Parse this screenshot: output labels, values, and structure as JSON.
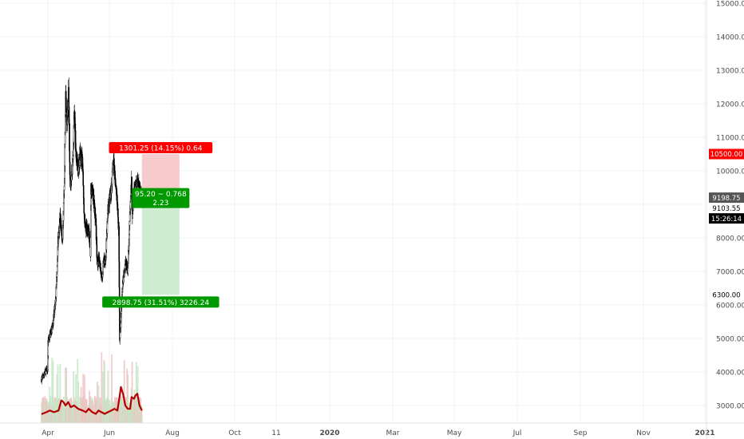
{
  "chart_data": {
    "type": "candlestick",
    "price_axis": {
      "ticks": [
        3000,
        4000,
        5000,
        6000,
        7000,
        8000,
        9000,
        10000,
        11000,
        12000,
        13000,
        14000,
        15000
      ],
      "tick_labels": [
        "3000.00",
        "4000.00",
        "5000.00",
        "6000.00",
        "7000.00",
        "8000.00",
        "9000.00",
        "10000.00",
        "11000.00",
        "12000.00",
        "13000.00",
        "14000.00",
        "15000.00"
      ]
    },
    "time_axis": {
      "labels": [
        "Apr",
        "Jun",
        "Aug",
        "Oct",
        "11",
        "2020",
        "Mar",
        "May",
        "Jul",
        "Sep",
        "Nov",
        "2021"
      ],
      "bold": [
        "2020",
        "2021"
      ]
    },
    "price_markers": [
      {
        "id": "target",
        "label": "10500.00",
        "value": 10500,
        "color": "#ff0000",
        "text_color": "#ffffff"
      },
      {
        "id": "entry",
        "label": "9198.75",
        "value": 9198.75,
        "color": "#555555",
        "text_color": "#ffffff"
      },
      {
        "id": "last",
        "label": "9103.55",
        "value": 9103.55,
        "color": "#ffffff",
        "text_color": "#000000"
      },
      {
        "id": "countdown",
        "label": "15:26:14",
        "value": 8700,
        "color": "#000000",
        "text_color": "#ffffff"
      },
      {
        "id": "stop",
        "label": "6300.00",
        "value": 6300,
        "color": "#ffffff",
        "text_color": "#000000"
      }
    ],
    "position_tool": {
      "entry": 9198.75,
      "target": 10500,
      "stop": 6300,
      "start_date": "2020-06-27",
      "end_date": "2020-12-25",
      "profit_color": "#f6c5c5",
      "loss_color": "#c9ebcb",
      "labels": {
        "target": "1301.25 (14.15%) 0.64",
        "stop": "2898.75 (31.51%) 3226.24",
        "center_line1": "95.20 ~ 0.768",
        "center_line2": "2.23"
      },
      "label_colors": {
        "target": "#ff0000",
        "center": "#009900",
        "stop": "#009900"
      }
    },
    "price_keypoints": [
      [
        "2019-03-01",
        3780
      ],
      [
        "2019-03-20",
        4000
      ],
      [
        "2019-03-31",
        4100
      ],
      [
        "2019-04-02",
        4900
      ],
      [
        "2019-04-25",
        5400
      ],
      [
        "2019-05-10",
        6300
      ],
      [
        "2019-05-20",
        7900
      ],
      [
        "2019-05-30",
        8600
      ],
      [
        "2019-06-10",
        7900
      ],
      [
        "2019-06-15",
        8800
      ],
      [
        "2019-06-20",
        9600
      ],
      [
        "2019-06-26",
        12600
      ],
      [
        "2019-06-30",
        11300
      ],
      [
        "2019-07-05",
        11800
      ],
      [
        "2019-07-10",
        12300
      ],
      [
        "2019-07-17",
        9700
      ],
      [
        "2019-07-25",
        9800
      ],
      [
        "2019-08-01",
        10500
      ],
      [
        "2019-08-06",
        11900
      ],
      [
        "2019-08-15",
        10300
      ],
      [
        "2019-08-25",
        10100
      ],
      [
        "2019-09-05",
        10500
      ],
      [
        "2019-09-15",
        10300
      ],
      [
        "2019-09-24",
        8500
      ],
      [
        "2019-10-05",
        8200
      ],
      [
        "2019-10-15",
        8300
      ],
      [
        "2019-10-23",
        7500
      ],
      [
        "2019-10-26",
        9500
      ],
      [
        "2019-11-05",
        9300
      ],
      [
        "2019-11-18",
        8500
      ],
      [
        "2019-11-25",
        7100
      ],
      [
        "2019-12-05",
        7400
      ],
      [
        "2019-12-17",
        6700
      ],
      [
        "2019-12-25",
        7300
      ],
      [
        "2020-01-05",
        7400
      ],
      [
        "2020-01-15",
        8800
      ],
      [
        "2020-01-30",
        9400
      ],
      [
        "2020-02-12",
        10300
      ],
      [
        "2020-02-25",
        9400
      ],
      [
        "2020-03-08",
        8200
      ],
      [
        "2020-03-12",
        5000
      ],
      [
        "2020-03-16",
        5200
      ],
      [
        "2020-03-25",
        6600
      ],
      [
        "2020-04-08",
        7300
      ],
      [
        "2020-04-20",
        7000
      ],
      [
        "2020-04-30",
        8800
      ],
      [
        "2020-05-08",
        9800
      ],
      [
        "2020-05-12",
        8600
      ],
      [
        "2020-05-20",
        9500
      ],
      [
        "2020-06-01",
        9500
      ],
      [
        "2020-06-05",
        9700
      ],
      [
        "2020-06-15",
        9400
      ],
      [
        "2020-06-25",
        9200
      ],
      [
        "2020-06-27",
        9100
      ]
    ],
    "volume_ma_keypoints": [
      [
        "2019-03-01",
        2740
      ],
      [
        "2019-03-25",
        2800
      ],
      [
        "2019-04-10",
        2850
      ],
      [
        "2019-05-01",
        2800
      ],
      [
        "2019-05-22",
        2850
      ],
      [
        "2019-06-05",
        3150
      ],
      [
        "2019-06-15",
        3100
      ],
      [
        "2019-06-25",
        3000
      ],
      [
        "2019-07-08",
        3100
      ],
      [
        "2019-07-20",
        2950
      ],
      [
        "2019-08-05",
        3000
      ],
      [
        "2019-08-25",
        2900
      ],
      [
        "2019-09-15",
        2850
      ],
      [
        "2019-10-01",
        2800
      ],
      [
        "2019-10-15",
        2900
      ],
      [
        "2019-11-01",
        2800
      ],
      [
        "2019-11-18",
        2750
      ],
      [
        "2019-12-01",
        2850
      ],
      [
        "2019-12-15",
        2800
      ],
      [
        "2019-12-31",
        2750
      ],
      [
        "2020-01-15",
        2800
      ],
      [
        "2020-02-01",
        2850
      ],
      [
        "2020-02-15",
        2900
      ],
      [
        "2020-03-01",
        2850
      ],
      [
        "2020-03-10",
        3200
      ],
      [
        "2020-03-18",
        3550
      ],
      [
        "2020-03-28",
        3350
      ],
      [
        "2020-04-08",
        3000
      ],
      [
        "2020-04-20",
        2900
      ],
      [
        "2020-05-01",
        2900
      ],
      [
        "2020-05-08",
        3250
      ],
      [
        "2020-05-20",
        3200
      ],
      [
        "2020-05-27",
        3300
      ],
      [
        "2020-06-05",
        3350
      ],
      [
        "2020-06-15",
        3000
      ],
      [
        "2020-06-27",
        2850
      ]
    ],
    "colors": {
      "candle": "#000000",
      "volume_ma": "#b20000",
      "volume_up": "#f0c2c2",
      "volume_down": "#c6e6c6",
      "grid": "#f0f3fa",
      "axis_text": "#4a4a4a"
    },
    "grid": true
  }
}
